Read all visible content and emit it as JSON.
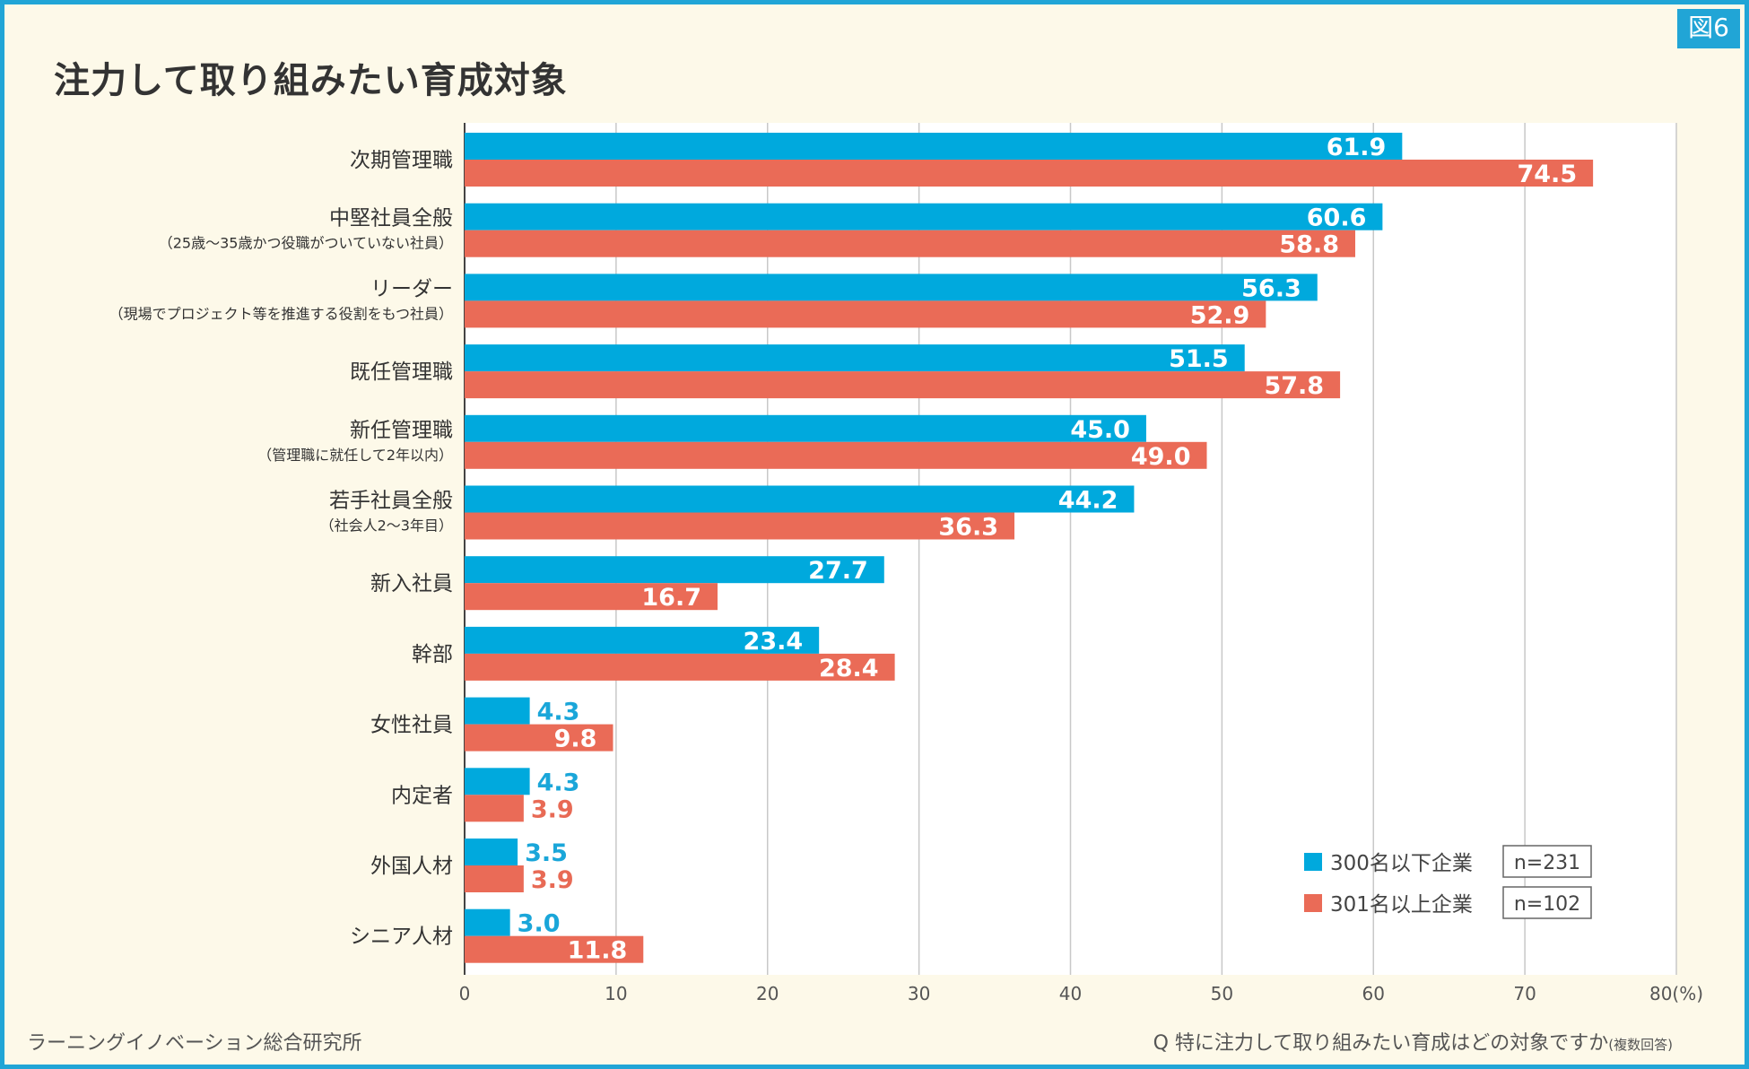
{
  "figure_tag": "図6",
  "source": "ラーニングイノベーション総合研究所",
  "question": {
    "main": "Q 特に注力して取り組みたい育成はどの対象ですか",
    "note": "(複数回答)"
  },
  "colors": {
    "series_a": "#00a9dd",
    "series_b": "#ea6b57",
    "frame": "#21a5d6"
  },
  "chart_data": {
    "type": "bar",
    "orientation": "horizontal",
    "title": "注力して取り組みたい育成対象",
    "categories": [
      {
        "label": "次期管理職",
        "sub": ""
      },
      {
        "label": "中堅社員全般",
        "sub": "（25歳～35歳かつ役職がついていない社員）"
      },
      {
        "label": "リーダー",
        "sub": "（現場でプロジェクト等を推進する役割をもつ社員）"
      },
      {
        "label": "既任管理職",
        "sub": ""
      },
      {
        "label": "新任管理職",
        "sub": "（管理職に就任して2年以内）"
      },
      {
        "label": "若手社員全般",
        "sub": "（社会人2～3年目）"
      },
      {
        "label": "新入社員",
        "sub": ""
      },
      {
        "label": "幹部",
        "sub": ""
      },
      {
        "label": "女性社員",
        "sub": ""
      },
      {
        "label": "内定者",
        "sub": ""
      },
      {
        "label": "外国人材",
        "sub": ""
      },
      {
        "label": "シニア人材",
        "sub": ""
      }
    ],
    "series": [
      {
        "name": "300名以下企業",
        "n": "n=231",
        "values": [
          61.9,
          60.6,
          56.3,
          51.5,
          45.0,
          44.2,
          27.7,
          23.4,
          4.3,
          4.3,
          3.5,
          3.0
        ]
      },
      {
        "name": "301名以上企業",
        "n": "n=102",
        "values": [
          74.5,
          58.8,
          52.9,
          57.8,
          49.0,
          36.3,
          16.7,
          28.4,
          9.8,
          3.9,
          3.9,
          11.8
        ]
      }
    ],
    "x_ticks": [
      "0",
      "10",
      "20",
      "30",
      "40",
      "50",
      "60",
      "70",
      "80(%)"
    ],
    "xlim": [
      0,
      80
    ],
    "grid": true,
    "legend_position": "bottom-right"
  }
}
